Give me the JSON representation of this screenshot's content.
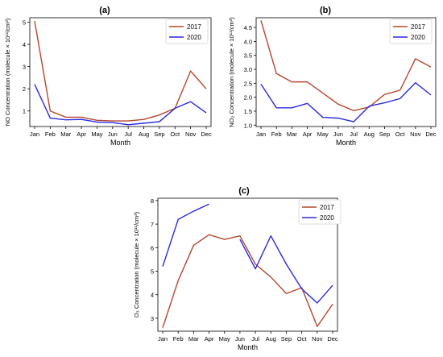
{
  "chart_data": [
    {
      "type": "line",
      "panel_label": "(a)",
      "categories": [
        "Jan",
        "Feb",
        "Mar",
        "Apr",
        "May",
        "Jun",
        "Jul",
        "Aug",
        "Sep",
        "Oct",
        "Nov",
        "Dec"
      ],
      "xlabel": "Month",
      "ylabel": "NO Concentration (molecule × 10¹¹/cm³)",
      "ylim": [
        0.3,
        5.2
      ],
      "yticks": [
        "1",
        "2",
        "3",
        "4",
        "5"
      ],
      "ytick_values": [
        1,
        2,
        3,
        4,
        5
      ],
      "legend_placement": "top-right",
      "series": [
        {
          "name": "2017",
          "color": "#b5472c",
          "values": [
            5.05,
            1.0,
            0.72,
            0.72,
            0.58,
            0.55,
            0.55,
            0.62,
            0.82,
            1.12,
            2.8,
            2.0
          ]
        },
        {
          "name": "2020",
          "color": "#2a2ae0",
          "values": [
            2.2,
            0.68,
            0.6,
            0.62,
            0.5,
            0.48,
            0.38,
            0.45,
            0.52,
            1.12,
            1.42,
            0.92
          ]
        }
      ]
    },
    {
      "type": "line",
      "panel_label": "(b)",
      "categories": [
        "Jan",
        "Feb",
        "Mar",
        "Apr",
        "May",
        "Jun",
        "Jul",
        "Aug",
        "Sep",
        "Oct",
        "Nov",
        "Dec"
      ],
      "xlabel": "Month",
      "ylabel": "NO₂ Concentration (molecule × 10¹¹/cm³)",
      "ylim": [
        0.95,
        4.85
      ],
      "yticks": [
        "1.0",
        "1.5",
        "2.0",
        "2.5",
        "3.0",
        "3.5",
        "4.0",
        "4.5"
      ],
      "ytick_values": [
        1.0,
        1.5,
        2.0,
        2.5,
        3.0,
        3.5,
        4.0,
        4.5
      ],
      "legend_placement": "top-right",
      "series": [
        {
          "name": "2017",
          "color": "#b5472c",
          "values": [
            4.75,
            2.85,
            2.55,
            2.55,
            2.15,
            1.75,
            1.52,
            1.65,
            2.1,
            2.25,
            3.38,
            3.08
          ]
        },
        {
          "name": "2020",
          "color": "#2a2ae0",
          "values": [
            2.47,
            1.62,
            1.62,
            1.78,
            1.28,
            1.25,
            1.12,
            1.68,
            1.8,
            1.95,
            2.52,
            2.08
          ]
        }
      ]
    },
    {
      "type": "line",
      "panel_label": "(c)",
      "categories": [
        "Jan",
        "Feb",
        "Mar",
        "Apr",
        "May",
        "Jun",
        "Jul",
        "Aug",
        "Sep",
        "Oct",
        "Nov",
        "Dec"
      ],
      "xlabel": "Month",
      "ylabel": "O₃ Concentration (molecule × 10¹¹/cm³)",
      "ylim": [
        2.45,
        8.1
      ],
      "yticks": [
        "3",
        "4",
        "5",
        "6",
        "7",
        "8"
      ],
      "ytick_values": [
        3,
        4,
        5,
        6,
        7,
        8
      ],
      "legend_placement": "top-right",
      "series": [
        {
          "name": "2017",
          "color": "#b5472c",
          "values": [
            2.6,
            4.6,
            6.1,
            6.55,
            6.35,
            6.5,
            5.3,
            4.75,
            4.05,
            4.3,
            2.65,
            3.6
          ]
        },
        {
          "name": "2020",
          "color": "#2a2ae0",
          "values": [
            5.2,
            7.2,
            7.55,
            7.85,
            null,
            6.35,
            5.1,
            6.5,
            5.3,
            4.25,
            3.65,
            4.4
          ]
        }
      ]
    }
  ]
}
